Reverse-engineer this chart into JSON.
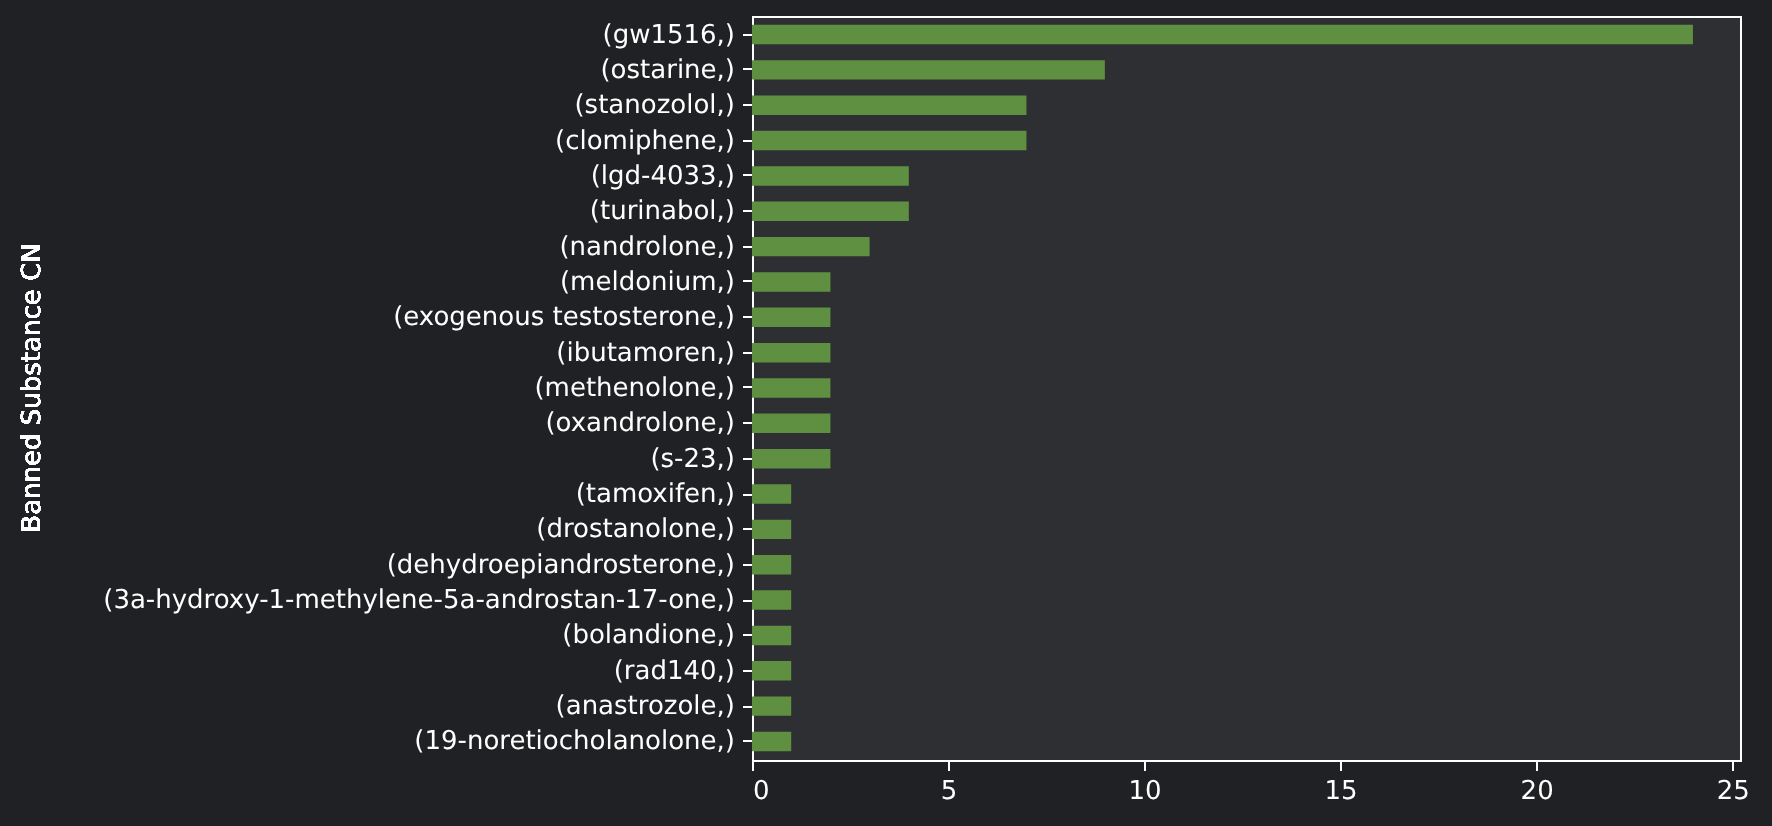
{
  "chart_data": {
    "type": "bar",
    "orientation": "horizontal",
    "ylabel": "Banned Substance CN",
    "categories": [
      "(gw1516,)",
      "(ostarine,)",
      "(stanozolol,)",
      "(clomiphene,)",
      "(lgd-4033,)",
      "(turinabol,)",
      "(nandrolone,)",
      "(meldonium,)",
      "(exogenous testosterone,)",
      "(ibutamoren,)",
      "(methenolone,)",
      "(oxandrolone,)",
      "(s-23,)",
      "(tamoxifen,)",
      "(drostanolone,)",
      "(dehydroepiandrosterone,)",
      "(3a-hydroxy-1-methylene-5a-androstan-17-one,)",
      "(bolandione,)",
      "(rad140,)",
      "(anastrozole,)",
      "(19-noretiocholanolone,)"
    ],
    "values": [
      24,
      9,
      7,
      7,
      4,
      4,
      3,
      2,
      2,
      2,
      2,
      2,
      2,
      1,
      1,
      1,
      1,
      1,
      1,
      1,
      1
    ],
    "color": "#5f8f40",
    "xlim": [
      0,
      25.2
    ],
    "xticks": [
      0,
      5,
      10,
      15,
      20,
      25
    ],
    "grid": false
  }
}
